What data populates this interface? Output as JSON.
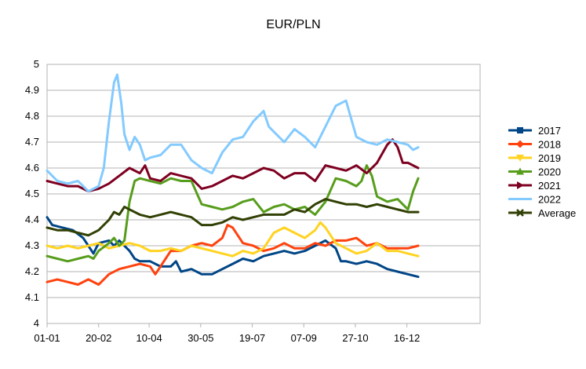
{
  "chart_data": {
    "type": "line",
    "title": "EUR/PLN",
    "xlabel": "",
    "ylabel": "",
    "x_ticks": [
      "01-01",
      "20-02",
      "10-04",
      "30-05",
      "19-07",
      "07-09",
      "27-10",
      "16-12"
    ],
    "x_tick_days": [
      0,
      50,
      99,
      149,
      199,
      249,
      299,
      349
    ],
    "x_range_days": [
      0,
      420
    ],
    "ylim": [
      4,
      5
    ],
    "y_ticks": [
      "4",
      "4.1",
      "4.2",
      "4.3",
      "4.4",
      "4.5",
      "4.6",
      "4.7",
      "4.8",
      "4.9",
      "5"
    ],
    "grid": "horizontal",
    "legend_position": "right",
    "series": [
      {
        "name": "2017",
        "color": "#004586",
        "marker": "square",
        "points": [
          [
            0,
            4.41
          ],
          [
            5,
            4.38
          ],
          [
            15,
            4.37
          ],
          [
            25,
            4.36
          ],
          [
            35,
            4.33
          ],
          [
            40,
            4.3
          ],
          [
            45,
            4.27
          ],
          [
            50,
            4.31
          ],
          [
            60,
            4.32
          ],
          [
            65,
            4.3
          ],
          [
            70,
            4.32
          ],
          [
            80,
            4.28
          ],
          [
            85,
            4.25
          ],
          [
            90,
            4.24
          ],
          [
            100,
            4.24
          ],
          [
            110,
            4.22
          ],
          [
            120,
            4.22
          ],
          [
            125,
            4.24
          ],
          [
            130,
            4.2
          ],
          [
            140,
            4.21
          ],
          [
            150,
            4.19
          ],
          [
            160,
            4.19
          ],
          [
            170,
            4.21
          ],
          [
            180,
            4.23
          ],
          [
            190,
            4.25
          ],
          [
            200,
            4.24
          ],
          [
            210,
            4.26
          ],
          [
            220,
            4.27
          ],
          [
            230,
            4.28
          ],
          [
            240,
            4.27
          ],
          [
            250,
            4.28
          ],
          [
            260,
            4.3
          ],
          [
            270,
            4.32
          ],
          [
            280,
            4.29
          ],
          [
            285,
            4.24
          ],
          [
            290,
            4.24
          ],
          [
            300,
            4.23
          ],
          [
            310,
            4.24
          ],
          [
            320,
            4.23
          ],
          [
            330,
            4.21
          ],
          [
            340,
            4.2
          ],
          [
            350,
            4.19
          ],
          [
            360,
            4.18
          ]
        ]
      },
      {
        "name": "2018",
        "color": "#ff420e",
        "marker": "diamond",
        "points": [
          [
            0,
            4.16
          ],
          [
            10,
            4.17
          ],
          [
            20,
            4.16
          ],
          [
            30,
            4.15
          ],
          [
            40,
            4.17
          ],
          [
            50,
            4.15
          ],
          [
            55,
            4.17
          ],
          [
            60,
            4.19
          ],
          [
            70,
            4.21
          ],
          [
            80,
            4.22
          ],
          [
            90,
            4.23
          ],
          [
            100,
            4.22
          ],
          [
            105,
            4.19
          ],
          [
            110,
            4.22
          ],
          [
            115,
            4.25
          ],
          [
            120,
            4.28
          ],
          [
            130,
            4.28
          ],
          [
            140,
            4.3
          ],
          [
            150,
            4.31
          ],
          [
            160,
            4.3
          ],
          [
            170,
            4.33
          ],
          [
            175,
            4.38
          ],
          [
            180,
            4.37
          ],
          [
            190,
            4.31
          ],
          [
            200,
            4.3
          ],
          [
            210,
            4.28
          ],
          [
            220,
            4.29
          ],
          [
            230,
            4.31
          ],
          [
            240,
            4.29
          ],
          [
            250,
            4.29
          ],
          [
            260,
            4.31
          ],
          [
            270,
            4.3
          ],
          [
            280,
            4.32
          ],
          [
            290,
            4.32
          ],
          [
            300,
            4.33
          ],
          [
            310,
            4.3
          ],
          [
            320,
            4.31
          ],
          [
            330,
            4.29
          ],
          [
            340,
            4.29
          ],
          [
            350,
            4.29
          ],
          [
            360,
            4.3
          ]
        ]
      },
      {
        "name": "2019",
        "color": "#ffd320",
        "marker": "triangle-down",
        "points": [
          [
            0,
            4.3
          ],
          [
            10,
            4.29
          ],
          [
            20,
            4.3
          ],
          [
            30,
            4.29
          ],
          [
            40,
            4.3
          ],
          [
            50,
            4.31
          ],
          [
            60,
            4.29
          ],
          [
            70,
            4.3
          ],
          [
            80,
            4.31
          ],
          [
            90,
            4.3
          ],
          [
            100,
            4.28
          ],
          [
            110,
            4.28
          ],
          [
            120,
            4.29
          ],
          [
            130,
            4.28
          ],
          [
            140,
            4.3
          ],
          [
            150,
            4.29
          ],
          [
            160,
            4.28
          ],
          [
            170,
            4.27
          ],
          [
            180,
            4.26
          ],
          [
            190,
            4.28
          ],
          [
            200,
            4.27
          ],
          [
            210,
            4.29
          ],
          [
            220,
            4.35
          ],
          [
            230,
            4.37
          ],
          [
            240,
            4.35
          ],
          [
            250,
            4.33
          ],
          [
            260,
            4.36
          ],
          [
            265,
            4.39
          ],
          [
            270,
            4.37
          ],
          [
            280,
            4.31
          ],
          [
            290,
            4.29
          ],
          [
            300,
            4.27
          ],
          [
            310,
            4.28
          ],
          [
            320,
            4.31
          ],
          [
            330,
            4.28
          ],
          [
            340,
            4.28
          ],
          [
            350,
            4.27
          ],
          [
            360,
            4.26
          ]
        ]
      },
      {
        "name": "2020",
        "color": "#579d1c",
        "marker": "triangle",
        "points": [
          [
            0,
            4.26
          ],
          [
            10,
            4.25
          ],
          [
            20,
            4.24
          ],
          [
            30,
            4.25
          ],
          [
            40,
            4.26
          ],
          [
            45,
            4.25
          ],
          [
            50,
            4.28
          ],
          [
            60,
            4.31
          ],
          [
            65,
            4.33
          ],
          [
            70,
            4.3
          ],
          [
            75,
            4.32
          ],
          [
            80,
            4.47
          ],
          [
            85,
            4.55
          ],
          [
            90,
            4.56
          ],
          [
            100,
            4.55
          ],
          [
            110,
            4.54
          ],
          [
            120,
            4.56
          ],
          [
            130,
            4.55
          ],
          [
            140,
            4.55
          ],
          [
            150,
            4.46
          ],
          [
            160,
            4.45
          ],
          [
            170,
            4.44
          ],
          [
            180,
            4.45
          ],
          [
            190,
            4.47
          ],
          [
            200,
            4.48
          ],
          [
            210,
            4.43
          ],
          [
            220,
            4.45
          ],
          [
            230,
            4.46
          ],
          [
            240,
            4.44
          ],
          [
            250,
            4.45
          ],
          [
            260,
            4.42
          ],
          [
            270,
            4.47
          ],
          [
            280,
            4.56
          ],
          [
            290,
            4.55
          ],
          [
            300,
            4.53
          ],
          [
            305,
            4.55
          ],
          [
            310,
            4.61
          ],
          [
            315,
            4.57
          ],
          [
            320,
            4.49
          ],
          [
            330,
            4.47
          ],
          [
            340,
            4.48
          ],
          [
            350,
            4.44
          ],
          [
            355,
            4.51
          ],
          [
            360,
            4.56
          ]
        ]
      },
      {
        "name": "2021",
        "color": "#7e0021",
        "marker": "triangle-right",
        "points": [
          [
            0,
            4.55
          ],
          [
            10,
            4.54
          ],
          [
            20,
            4.53
          ],
          [
            30,
            4.53
          ],
          [
            40,
            4.51
          ],
          [
            50,
            4.52
          ],
          [
            60,
            4.54
          ],
          [
            70,
            4.57
          ],
          [
            80,
            4.6
          ],
          [
            90,
            4.58
          ],
          [
            95,
            4.61
          ],
          [
            100,
            4.56
          ],
          [
            110,
            4.55
          ],
          [
            120,
            4.58
          ],
          [
            130,
            4.57
          ],
          [
            140,
            4.56
          ],
          [
            150,
            4.52
          ],
          [
            160,
            4.53
          ],
          [
            170,
            4.55
          ],
          [
            180,
            4.57
          ],
          [
            190,
            4.56
          ],
          [
            200,
            4.58
          ],
          [
            210,
            4.6
          ],
          [
            220,
            4.59
          ],
          [
            230,
            4.56
          ],
          [
            240,
            4.58
          ],
          [
            250,
            4.58
          ],
          [
            260,
            4.55
          ],
          [
            270,
            4.61
          ],
          [
            280,
            4.6
          ],
          [
            290,
            4.59
          ],
          [
            300,
            4.61
          ],
          [
            310,
            4.58
          ],
          [
            320,
            4.62
          ],
          [
            330,
            4.69
          ],
          [
            335,
            4.71
          ],
          [
            340,
            4.68
          ],
          [
            345,
            4.62
          ],
          [
            350,
            4.62
          ],
          [
            360,
            4.6
          ]
        ]
      },
      {
        "name": "2022",
        "color": "#83caff",
        "marker": "none",
        "points": [
          [
            0,
            4.59
          ],
          [
            10,
            4.55
          ],
          [
            20,
            4.54
          ],
          [
            30,
            4.55
          ],
          [
            35,
            4.53
          ],
          [
            40,
            4.51
          ],
          [
            50,
            4.53
          ],
          [
            55,
            4.6
          ],
          [
            60,
            4.78
          ],
          [
            65,
            4.93
          ],
          [
            68,
            4.96
          ],
          [
            72,
            4.85
          ],
          [
            75,
            4.73
          ],
          [
            80,
            4.67
          ],
          [
            85,
            4.72
          ],
          [
            90,
            4.69
          ],
          [
            95,
            4.63
          ],
          [
            100,
            4.64
          ],
          [
            110,
            4.65
          ],
          [
            120,
            4.69
          ],
          [
            130,
            4.69
          ],
          [
            140,
            4.63
          ],
          [
            150,
            4.6
          ],
          [
            160,
            4.58
          ],
          [
            170,
            4.66
          ],
          [
            180,
            4.71
          ],
          [
            190,
            4.72
          ],
          [
            200,
            4.78
          ],
          [
            210,
            4.82
          ],
          [
            215,
            4.76
          ],
          [
            220,
            4.74
          ],
          [
            230,
            4.7
          ],
          [
            240,
            4.75
          ],
          [
            250,
            4.72
          ],
          [
            260,
            4.68
          ],
          [
            270,
            4.76
          ],
          [
            280,
            4.84
          ],
          [
            290,
            4.86
          ],
          [
            295,
            4.79
          ],
          [
            300,
            4.72
          ],
          [
            310,
            4.7
          ],
          [
            320,
            4.69
          ],
          [
            330,
            4.71
          ],
          [
            340,
            4.7
          ],
          [
            350,
            4.69
          ],
          [
            355,
            4.67
          ],
          [
            360,
            4.68
          ]
        ]
      },
      {
        "name": "Average",
        "color": "#314004",
        "marker": "x",
        "points": [
          [
            0,
            4.37
          ],
          [
            10,
            4.36
          ],
          [
            20,
            4.36
          ],
          [
            30,
            4.35
          ],
          [
            40,
            4.34
          ],
          [
            50,
            4.36
          ],
          [
            60,
            4.4
          ],
          [
            65,
            4.43
          ],
          [
            70,
            4.42
          ],
          [
            75,
            4.45
          ],
          [
            80,
            4.44
          ],
          [
            90,
            4.42
          ],
          [
            100,
            4.41
          ],
          [
            110,
            4.42
          ],
          [
            120,
            4.43
          ],
          [
            130,
            4.42
          ],
          [
            140,
            4.41
          ],
          [
            150,
            4.38
          ],
          [
            160,
            4.38
          ],
          [
            170,
            4.39
          ],
          [
            180,
            4.41
          ],
          [
            190,
            4.4
          ],
          [
            200,
            4.41
          ],
          [
            210,
            4.42
          ],
          [
            220,
            4.42
          ],
          [
            230,
            4.42
          ],
          [
            240,
            4.44
          ],
          [
            250,
            4.43
          ],
          [
            260,
            4.46
          ],
          [
            270,
            4.48
          ],
          [
            280,
            4.47
          ],
          [
            290,
            4.46
          ],
          [
            300,
            4.46
          ],
          [
            310,
            4.45
          ],
          [
            320,
            4.46
          ],
          [
            330,
            4.45
          ],
          [
            340,
            4.44
          ],
          [
            350,
            4.43
          ],
          [
            360,
            4.43
          ]
        ]
      }
    ]
  }
}
